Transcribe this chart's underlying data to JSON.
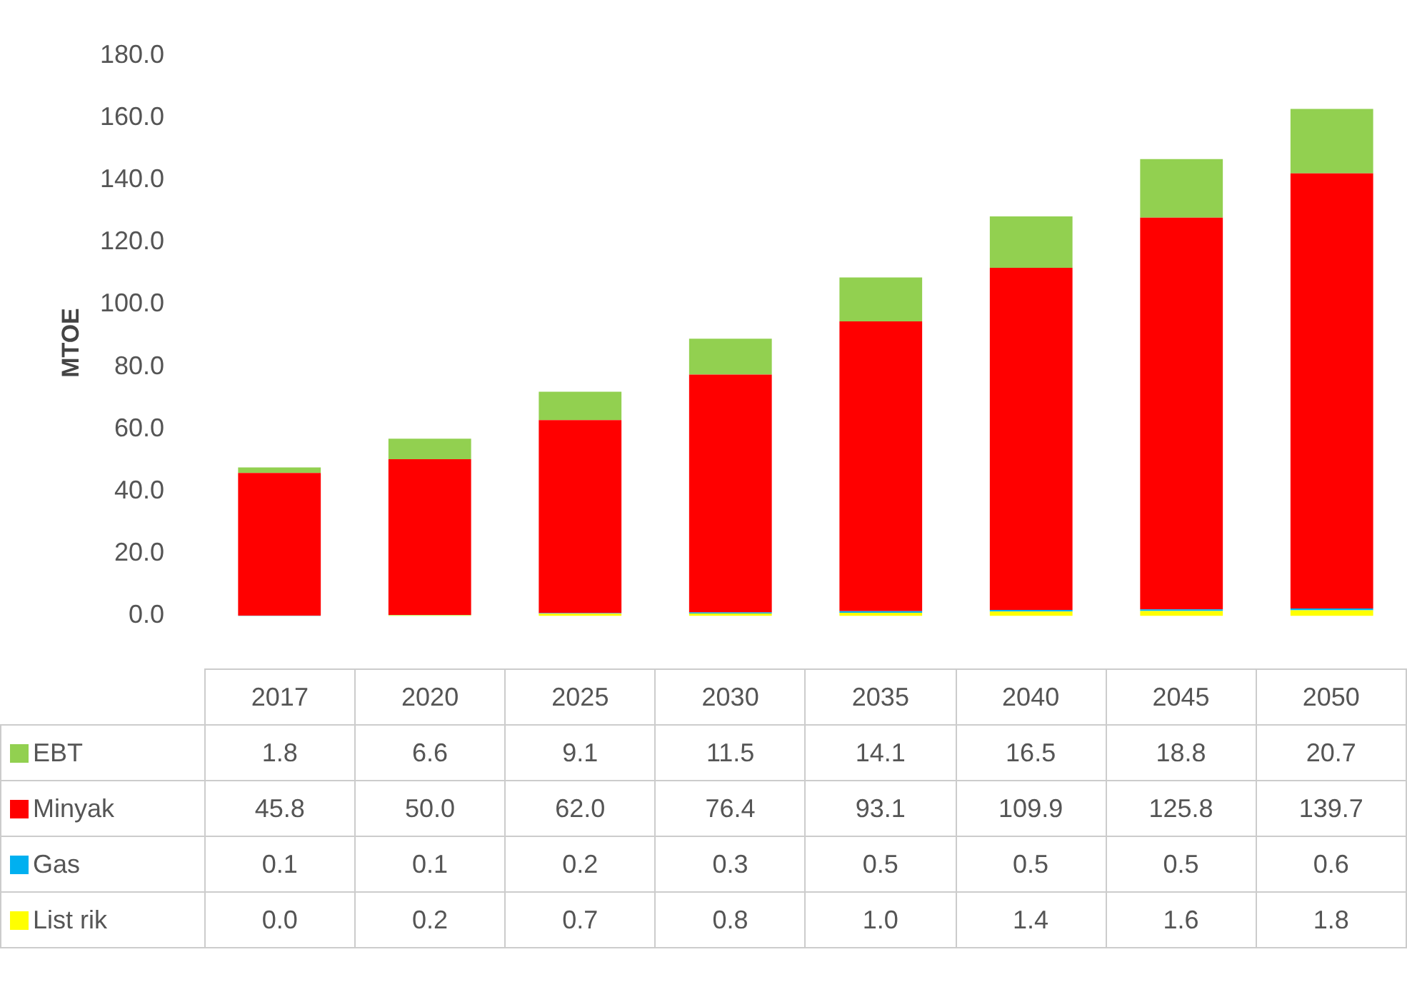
{
  "chart_data": {
    "type": "bar",
    "stacked": true,
    "legend": "bottom left",
    "ylabel": "MTOE",
    "categories": [
      "2017",
      "2020",
      "2025",
      "2030",
      "2035",
      "2040",
      "2045",
      "2050"
    ],
    "ylim": [
      0,
      180
    ],
    "yticks": [
      {
        "value": 0,
        "label": "0.0"
      },
      {
        "value": 20,
        "label": "20.0"
      },
      {
        "value": 40,
        "label": "40.0"
      },
      {
        "value": 60,
        "label": "60.0"
      },
      {
        "value": 80,
        "label": "80.0"
      },
      {
        "value": 100,
        "label": "100.0"
      },
      {
        "value": 120,
        "label": "120.0"
      },
      {
        "value": 140,
        "label": "140.0"
      },
      {
        "value": 160,
        "label": "160.0"
      },
      {
        "value": 180,
        "label": "180.0"
      }
    ],
    "series": [
      {
        "name": "List rik",
        "color": "#ffff00",
        "values": [
          0,
          0.2,
          0.7,
          0.8,
          1.0,
          1.4,
          1.6,
          1.8
        ],
        "value_labels": [
          "0.0",
          "0.2",
          "0.7",
          "0.8",
          "1.0",
          "1.4",
          "1.6",
          "1.8"
        ]
      },
      {
        "name": "Gas",
        "color": "#00b0f0",
        "values": [
          0.1,
          0.1,
          0.2,
          0.3,
          0.5,
          0.5,
          0.5,
          0.6
        ],
        "value_labels": [
          "0.1",
          "0.1",
          "0.2",
          "0.3",
          "0.5",
          "0.5",
          "0.5",
          "0.6"
        ]
      },
      {
        "name": "Minyak",
        "color": "#ff0000",
        "values": [
          45.8,
          50.0,
          62.0,
          76.4,
          93.1,
          109.9,
          125.8,
          139.7
        ],
        "value_labels": [
          "45.8",
          "50.0",
          "62.0",
          "76.4",
          "93.1",
          "109.9",
          "125.8",
          "139.7"
        ]
      },
      {
        "name": "EBT",
        "color": "#92d050",
        "values": [
          1.8,
          6.6,
          9.1,
          11.5,
          14.1,
          16.5,
          18.8,
          20.7
        ],
        "value_labels": [
          "1.8",
          "6.6",
          "9.1",
          "11.5",
          "14.1",
          "16.5",
          "18.8",
          "20.7"
        ]
      }
    ]
  }
}
